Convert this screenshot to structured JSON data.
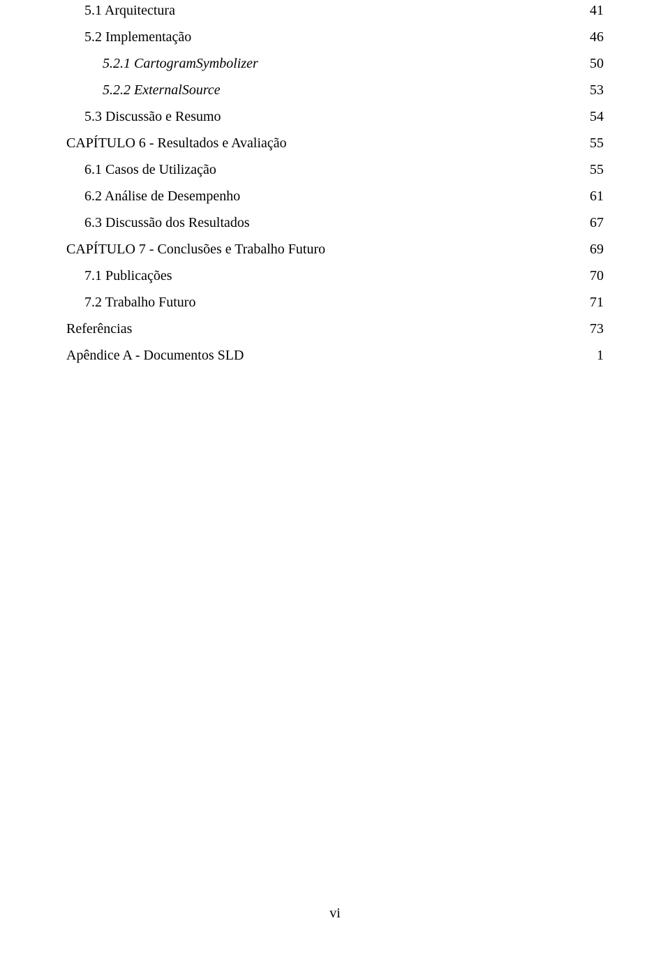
{
  "toc": {
    "entries": [
      {
        "label": "5.1 Arquitectura",
        "page": "41",
        "indent": 1,
        "italic": false
      },
      {
        "label": "5.2 Implementação",
        "page": "46",
        "indent": 1,
        "italic": false
      },
      {
        "label": "5.2.1 CartogramSymbolizer",
        "page": "50",
        "indent": 2,
        "italic": true
      },
      {
        "label": "5.2.2 ExternalSource",
        "page": "53",
        "indent": 2,
        "italic": true
      },
      {
        "label": "5.3 Discussão e Resumo",
        "page": "54",
        "indent": 1,
        "italic": false
      },
      {
        "label": "CAPÍTULO 6 - Resultados e Avaliação",
        "page": "55",
        "indent": 0,
        "italic": false
      },
      {
        "label": "6.1 Casos de Utilização",
        "page": "55",
        "indent": 1,
        "italic": false
      },
      {
        "label": "6.2 Análise de Desempenho",
        "page": "61",
        "indent": 1,
        "italic": false
      },
      {
        "label": "6.3 Discussão dos Resultados",
        "page": "67",
        "indent": 1,
        "italic": false
      },
      {
        "label": "CAPÍTULO 7 - Conclusões e Trabalho Futuro",
        "page": "69",
        "indent": 0,
        "italic": false
      },
      {
        "label": "7.1 Publicações",
        "page": "70",
        "indent": 1,
        "italic": false
      },
      {
        "label": "7.2 Trabalho Futuro",
        "page": "71",
        "indent": 1,
        "italic": false
      },
      {
        "label": "Referências",
        "page": "73",
        "indent": 0,
        "italic": false
      },
      {
        "label": "Apêndice A - Documentos SLD",
        "page": "1",
        "indent": 0,
        "italic": false
      }
    ]
  },
  "footer": {
    "page_label": "vi"
  }
}
